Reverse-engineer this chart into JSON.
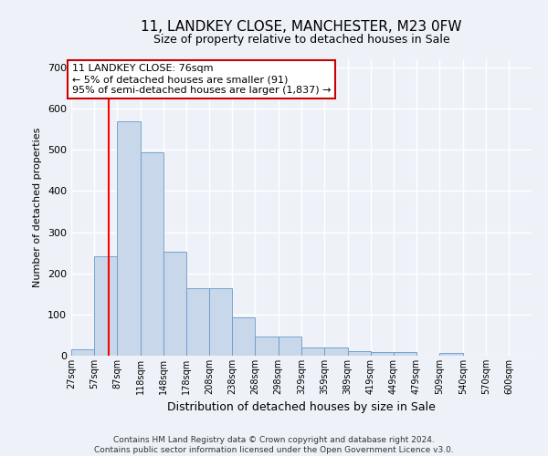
{
  "title": "11, LANDKEY CLOSE, MANCHESTER, M23 0FW",
  "subtitle": "Size of property relative to detached houses in Sale",
  "xlabel": "Distribution of detached houses by size in Sale",
  "ylabel": "Number of detached properties",
  "footer_line1": "Contains HM Land Registry data © Crown copyright and database right 2024.",
  "footer_line2": "Contains public sector information licensed under the Open Government Licence v3.0.",
  "annotation_title": "11 LANDKEY CLOSE: 76sqm",
  "annotation_line1": "← 5% of detached houses are smaller (91)",
  "annotation_line2": "95% of semi-detached houses are larger (1,837) →",
  "bar_color": "#c8d8ea",
  "bar_edge_color": "#6699cc",
  "redline_color": "red",
  "redline_x": 76,
  "bins": [
    27,
    57,
    87,
    118,
    148,
    178,
    208,
    238,
    268,
    298,
    329,
    359,
    389,
    419,
    449,
    479,
    509,
    540,
    570,
    600,
    630
  ],
  "values": [
    15,
    242,
    570,
    493,
    253,
    165,
    163,
    93,
    47,
    47,
    20,
    20,
    10,
    8,
    8,
    0,
    7,
    0,
    0,
    0
  ],
  "ylim": [
    0,
    720
  ],
  "yticks": [
    0,
    100,
    200,
    300,
    400,
    500,
    600,
    700
  ],
  "bg_color": "#eef2f8",
  "grid_color": "#ffffff",
  "annotation_box_color": "#ffffff",
  "annotation_border_color": "#cc0000",
  "title_fontsize": 11,
  "subtitle_fontsize": 9,
  "ylabel_fontsize": 8,
  "xlabel_fontsize": 9,
  "ytick_fontsize": 8,
  "xtick_fontsize": 7,
  "footer_fontsize": 6.5,
  "annotation_fontsize": 8
}
